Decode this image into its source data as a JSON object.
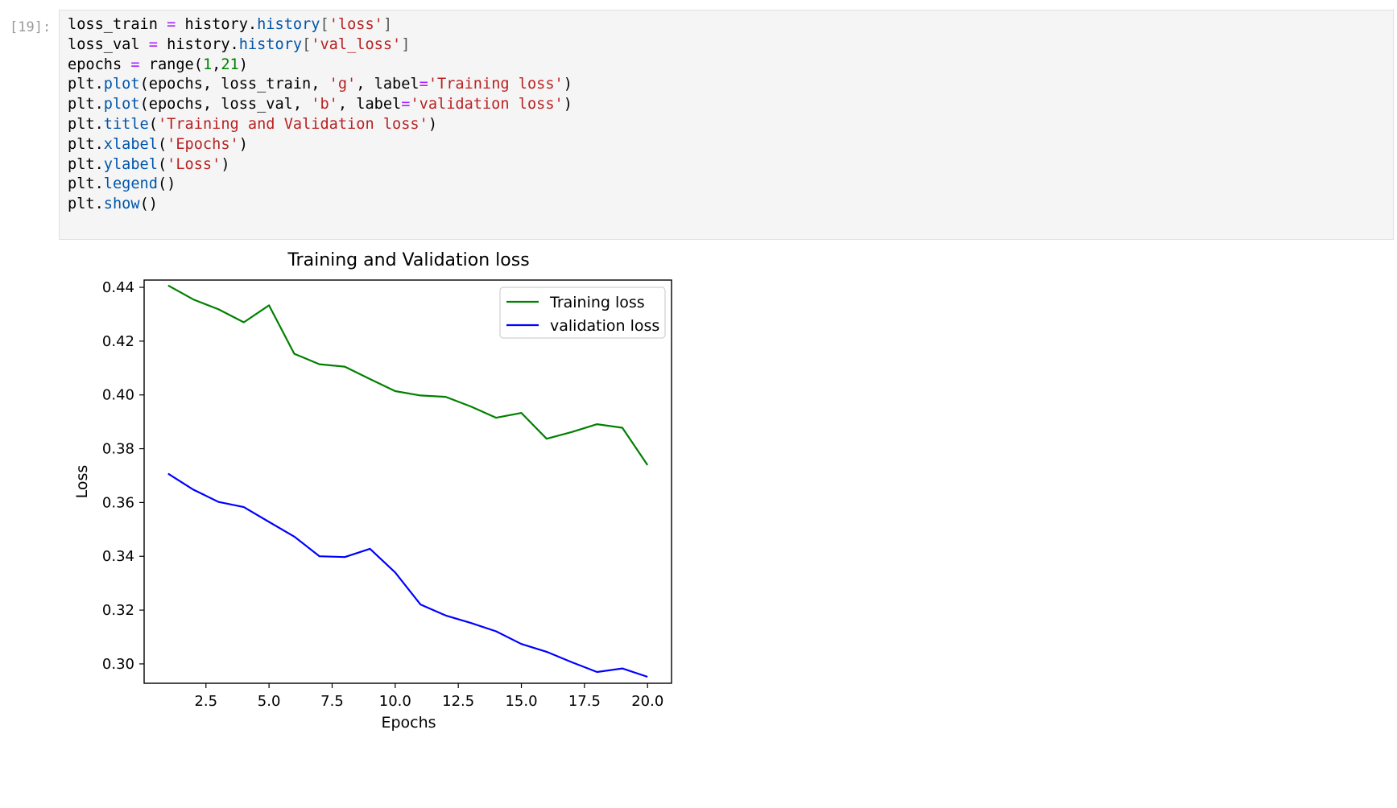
{
  "cell": {
    "prompt": "[19]:",
    "code_lines": [
      [
        {
          "t": "loss_train",
          "c": "name"
        },
        {
          "t": " ",
          "c": "punc"
        },
        {
          "t": "=",
          "c": "op"
        },
        {
          "t": " history.",
          "c": "name"
        },
        {
          "t": "history",
          "c": "attr"
        },
        {
          "t": "[",
          "c": "bracket"
        },
        {
          "t": "'loss'",
          "c": "str"
        },
        {
          "t": "]",
          "c": "bracket"
        }
      ],
      [
        {
          "t": "loss_val",
          "c": "name"
        },
        {
          "t": " ",
          "c": "punc"
        },
        {
          "t": "=",
          "c": "op"
        },
        {
          "t": " history.",
          "c": "name"
        },
        {
          "t": "history",
          "c": "attr"
        },
        {
          "t": "[",
          "c": "bracket"
        },
        {
          "t": "'val_loss'",
          "c": "str"
        },
        {
          "t": "]",
          "c": "bracket"
        }
      ],
      [
        {
          "t": "epochs",
          "c": "name"
        },
        {
          "t": " ",
          "c": "punc"
        },
        {
          "t": "=",
          "c": "op"
        },
        {
          "t": " range(",
          "c": "name"
        },
        {
          "t": "1",
          "c": "num"
        },
        {
          "t": ",",
          "c": "name"
        },
        {
          "t": "21",
          "c": "num"
        },
        {
          "t": ")",
          "c": "name"
        }
      ],
      [
        {
          "t": "plt.",
          "c": "name"
        },
        {
          "t": "plot",
          "c": "attr"
        },
        {
          "t": "(epochs, loss_train, ",
          "c": "name"
        },
        {
          "t": "'g'",
          "c": "str"
        },
        {
          "t": ", label",
          "c": "name"
        },
        {
          "t": "=",
          "c": "op"
        },
        {
          "t": "'Training loss'",
          "c": "str"
        },
        {
          "t": ")",
          "c": "name"
        }
      ],
      [
        {
          "t": "plt.",
          "c": "name"
        },
        {
          "t": "plot",
          "c": "attr"
        },
        {
          "t": "(epochs, loss_val, ",
          "c": "name"
        },
        {
          "t": "'b'",
          "c": "str"
        },
        {
          "t": ", label",
          "c": "name"
        },
        {
          "t": "=",
          "c": "op"
        },
        {
          "t": "'validation loss'",
          "c": "str"
        },
        {
          "t": ")",
          "c": "name"
        }
      ],
      [
        {
          "t": "plt.",
          "c": "name"
        },
        {
          "t": "title",
          "c": "attr"
        },
        {
          "t": "(",
          "c": "name"
        },
        {
          "t": "'Training and Validation loss'",
          "c": "str"
        },
        {
          "t": ")",
          "c": "name"
        }
      ],
      [
        {
          "t": "plt.",
          "c": "name"
        },
        {
          "t": "xlabel",
          "c": "attr"
        },
        {
          "t": "(",
          "c": "name"
        },
        {
          "t": "'Epochs'",
          "c": "str"
        },
        {
          "t": ")",
          "c": "name"
        }
      ],
      [
        {
          "t": "plt.",
          "c": "name"
        },
        {
          "t": "ylabel",
          "c": "attr"
        },
        {
          "t": "(",
          "c": "name"
        },
        {
          "t": "'Loss'",
          "c": "str"
        },
        {
          "t": ")",
          "c": "name"
        }
      ],
      [
        {
          "t": "plt.",
          "c": "name"
        },
        {
          "t": "legend",
          "c": "attr"
        },
        {
          "t": "()",
          "c": "name"
        }
      ],
      [
        {
          "t": "plt.",
          "c": "name"
        },
        {
          "t": "show",
          "c": "attr"
        },
        {
          "t": "()",
          "c": "name"
        }
      ]
    ]
  },
  "colors": {
    "code_bg": "#f5f5f5",
    "training": "#008000",
    "validation": "#0000ff"
  },
  "chart_data": {
    "type": "line",
    "title": "Training and Validation loss",
    "xlabel": "Epochs",
    "ylabel": "Loss",
    "xlim": [
      0.05,
      20.95
    ],
    "ylim": [
      0.2928,
      0.4427
    ],
    "xticks": [
      "2.5",
      "5.0",
      "7.5",
      "10.0",
      "12.5",
      "15.0",
      "17.5",
      "20.0"
    ],
    "xtick_values": [
      2.5,
      5.0,
      7.5,
      10.0,
      12.5,
      15.0,
      17.5,
      20.0
    ],
    "yticks": [
      "0.30",
      "0.32",
      "0.34",
      "0.36",
      "0.38",
      "0.40",
      "0.42",
      "0.44"
    ],
    "ytick_values": [
      0.3,
      0.32,
      0.34,
      0.36,
      0.38,
      0.4,
      0.42,
      0.44
    ],
    "legend_position": "top-right",
    "x": [
      1,
      2,
      3,
      4,
      5,
      6,
      7,
      8,
      9,
      10,
      11,
      12,
      13,
      14,
      15,
      16,
      17,
      18,
      19,
      20
    ],
    "series": [
      {
        "name": "Training loss",
        "color": "#008000",
        "values": [
          0.4407,
          0.4355,
          0.4318,
          0.427,
          0.4333,
          0.4153,
          0.4114,
          0.4105,
          0.4059,
          0.4014,
          0.3998,
          0.3993,
          0.3957,
          0.3915,
          0.3933,
          0.3837,
          0.3862,
          0.3891,
          0.3878,
          0.3739
        ]
      },
      {
        "name": "validation loss",
        "color": "#0000ff",
        "values": [
          0.3707,
          0.3648,
          0.3602,
          0.3583,
          0.3528,
          0.3473,
          0.34,
          0.3397,
          0.3428,
          0.334,
          0.3221,
          0.318,
          0.3152,
          0.3121,
          0.3074,
          0.3045,
          0.3006,
          0.297,
          0.2983,
          0.2952
        ]
      }
    ]
  }
}
